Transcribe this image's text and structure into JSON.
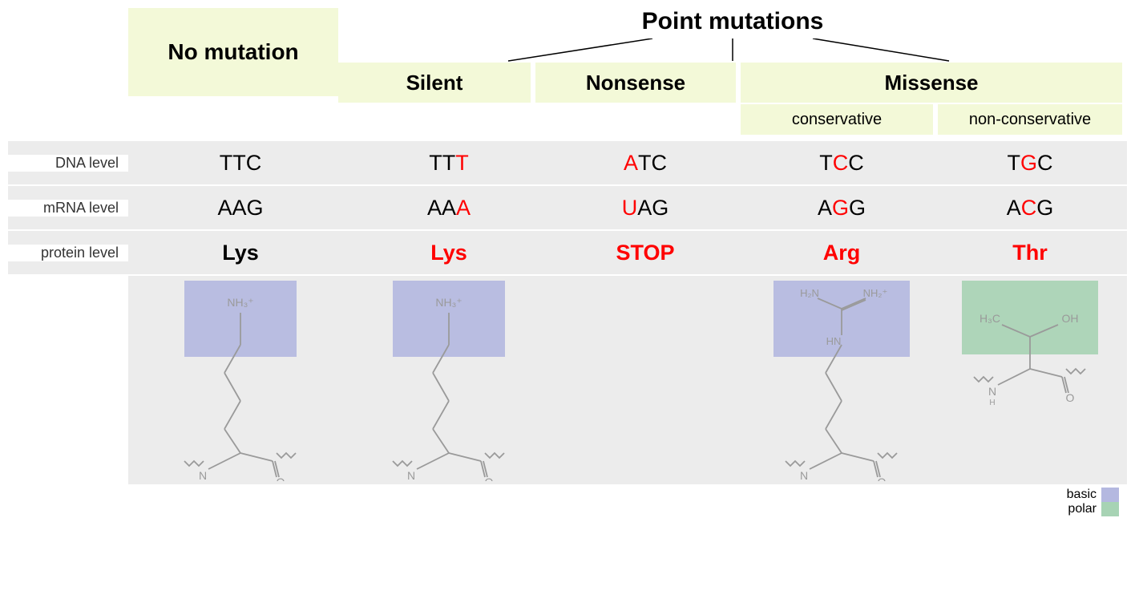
{
  "title": "Point mutations",
  "colors": {
    "header_bg": "#f3f9d8",
    "grey_bg": "#ececec",
    "mutation_red": "#ff0000",
    "text_black": "#000000",
    "basic_highlight": "#b4b8e0",
    "polar_highlight": "#a7d3b4",
    "struct_stroke": "#9a9a9a"
  },
  "col_widths": {
    "no_mutation": 280,
    "silent": 240,
    "nonsense": 250,
    "missense_cons": 240,
    "missense_noncons": 230
  },
  "headers": {
    "no_mutation": "No mutation",
    "silent": "Silent",
    "nonsense": "Nonsense",
    "missense": "Missense",
    "missense_cons": "conservative",
    "missense_noncons": "non-conservative"
  },
  "row_labels": {
    "dna": "DNA level",
    "mrna": "mRNA level",
    "protein": "protein level"
  },
  "columns": [
    {
      "id": "no_mutation",
      "dna": [
        {
          "c": "T",
          "mut": false
        },
        {
          "c": "T",
          "mut": false
        },
        {
          "c": "C",
          "mut": false
        }
      ],
      "mrna": [
        {
          "c": "A",
          "mut": false
        },
        {
          "c": "A",
          "mut": false
        },
        {
          "c": "G",
          "mut": false
        }
      ],
      "protein": {
        "text": "Lys",
        "mut": false
      },
      "structure": "lys",
      "highlight": "basic"
    },
    {
      "id": "silent",
      "dna": [
        {
          "c": "T",
          "mut": false
        },
        {
          "c": "T",
          "mut": false
        },
        {
          "c": "T",
          "mut": true
        }
      ],
      "mrna": [
        {
          "c": "A",
          "mut": false
        },
        {
          "c": "A",
          "mut": false
        },
        {
          "c": "A",
          "mut": true
        }
      ],
      "protein": {
        "text": "Lys",
        "mut": true
      },
      "structure": "lys",
      "highlight": "basic"
    },
    {
      "id": "nonsense",
      "dna": [
        {
          "c": "A",
          "mut": true
        },
        {
          "c": "T",
          "mut": false
        },
        {
          "c": "C",
          "mut": false
        }
      ],
      "mrna": [
        {
          "c": "U",
          "mut": true
        },
        {
          "c": "A",
          "mut": false
        },
        {
          "c": "G",
          "mut": false
        }
      ],
      "protein": {
        "text": "STOP",
        "mut": true
      },
      "structure": null,
      "highlight": null
    },
    {
      "id": "missense_cons",
      "dna": [
        {
          "c": "T",
          "mut": false
        },
        {
          "c": "C",
          "mut": true
        },
        {
          "c": "C",
          "mut": false
        }
      ],
      "mrna": [
        {
          "c": "A",
          "mut": false
        },
        {
          "c": "G",
          "mut": true
        },
        {
          "c": "G",
          "mut": false
        }
      ],
      "protein": {
        "text": "Arg",
        "mut": true
      },
      "structure": "arg",
      "highlight": "basic"
    },
    {
      "id": "missense_noncons",
      "dna": [
        {
          "c": "T",
          "mut": false
        },
        {
          "c": "G",
          "mut": true
        },
        {
          "c": "C",
          "mut": false
        }
      ],
      "mrna": [
        {
          "c": "A",
          "mut": false
        },
        {
          "c": "C",
          "mut": true
        },
        {
          "c": "G",
          "mut": false
        }
      ],
      "protein": {
        "text": "Thr",
        "mut": true
      },
      "structure": "thr",
      "highlight": "polar"
    }
  ],
  "legend": {
    "basic": "basic",
    "polar": "polar"
  }
}
